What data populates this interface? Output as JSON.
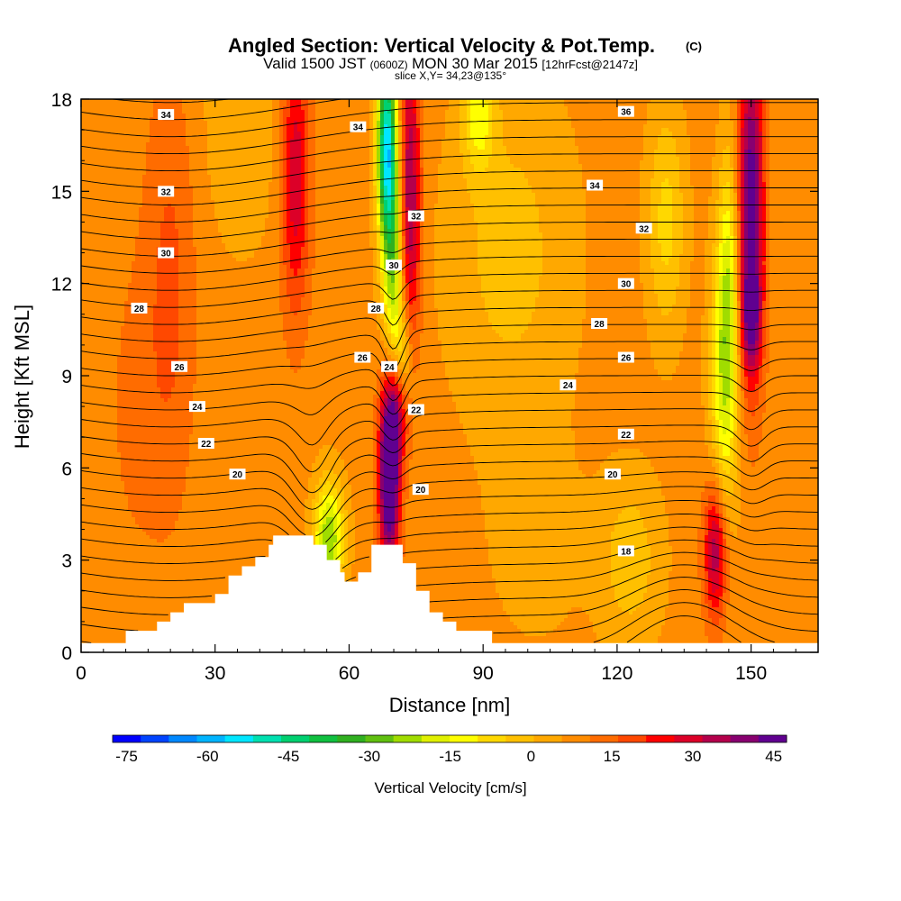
{
  "title": {
    "main": "Angled Section: Vertical Velocity & Pot.Temp.",
    "main_suffix": "(C)",
    "valid_prefix": "Valid 1500 JST",
    "valid_z": "(0600Z)",
    "valid_date": "MON 30 Mar 2015",
    "forecast": "[12hrFcst@2147z]",
    "slice": "slice X,Y= 34,23@135°"
  },
  "chart_data": {
    "type": "heatmap",
    "xlabel": "Distance [nm]",
    "ylabel": "Height [Kft MSL]",
    "xlim": [
      0,
      165
    ],
    "ylim": [
      0,
      18
    ],
    "x_ticks": [
      0,
      30,
      60,
      90,
      120,
      150
    ],
    "y_ticks": [
      0,
      3,
      6,
      9,
      12,
      15,
      18
    ],
    "colorbar": {
      "label": "Vertical Velocity [cm/s]",
      "range": [
        -75,
        50
      ],
      "step": 5,
      "tick_values": [
        -75,
        -60,
        -45,
        -30,
        -15,
        0,
        15,
        30,
        45
      ],
      "colors": [
        "#0000ff",
        "#0044ff",
        "#0088ff",
        "#00b4ff",
        "#00e6ff",
        "#00e0b0",
        "#00d070",
        "#10c040",
        "#30b020",
        "#60c010",
        "#a0dc00",
        "#e0f000",
        "#ffff00",
        "#ffd800",
        "#ffc000",
        "#ffa800",
        "#ff8c00",
        "#ff6c00",
        "#ff4800",
        "#ff0000",
        "#dc0028",
        "#b4004c",
        "#880070",
        "#600090"
      ]
    },
    "terrain_profile": [
      [
        0,
        0.3
      ],
      [
        10,
        0.3
      ],
      [
        10,
        0.7
      ],
      [
        17,
        0.7
      ],
      [
        17,
        1.0
      ],
      [
        20,
        1.0
      ],
      [
        20,
        1.3
      ],
      [
        23,
        1.3
      ],
      [
        23,
        1.6
      ],
      [
        30,
        1.6
      ],
      [
        30,
        1.9
      ],
      [
        33,
        1.9
      ],
      [
        33,
        2.5
      ],
      [
        36,
        2.5
      ],
      [
        36,
        2.8
      ],
      [
        39,
        2.8
      ],
      [
        39,
        3.1
      ],
      [
        42,
        3.1
      ],
      [
        42,
        3.5
      ],
      [
        43,
        3.5
      ],
      [
        43,
        3.8
      ],
      [
        52,
        3.8
      ],
      [
        52,
        3.5
      ],
      [
        55,
        3.5
      ],
      [
        55,
        3.0
      ],
      [
        58,
        3.0
      ],
      [
        58,
        2.6
      ],
      [
        59,
        2.6
      ],
      [
        59,
        2.3
      ],
      [
        62,
        2.3
      ],
      [
        62,
        2.6
      ],
      [
        65,
        2.6
      ],
      [
        65,
        3.5
      ],
      [
        72,
        3.5
      ],
      [
        72,
        2.9
      ],
      [
        75,
        2.9
      ],
      [
        75,
        2.0
      ],
      [
        78,
        2.0
      ],
      [
        78,
        1.3
      ],
      [
        81,
        1.3
      ],
      [
        81,
        1.0
      ],
      [
        84,
        1.0
      ],
      [
        84,
        0.7
      ],
      [
        92,
        0.7
      ],
      [
        92,
        0.3
      ],
      [
        165,
        0.3
      ]
    ],
    "background_w": 7,
    "velocity_features": [
      {
        "x": 69,
        "y": 5.9,
        "sx": 1.6,
        "sy": 2.1,
        "w": 52
      },
      {
        "x": 71,
        "y": 8.2,
        "sx": 1.5,
        "sy": 1.3,
        "w": 22
      },
      {
        "x": 73.5,
        "y": 14.8,
        "sx": 1.8,
        "sy": 3.6,
        "w": 30
      },
      {
        "x": 68.5,
        "y": 16.5,
        "sx": 1.6,
        "sy": 2.2,
        "w": -58
      },
      {
        "x": 70,
        "y": 12.5,
        "sx": 1.7,
        "sy": 2.5,
        "w": -30
      },
      {
        "x": 72,
        "y": 9.5,
        "sx": 1.5,
        "sy": 1.2,
        "w": -20
      },
      {
        "x": 55.5,
        "y": 3.7,
        "sx": 2.4,
        "sy": 1.3,
        "w": -32
      },
      {
        "x": 48,
        "y": 15.5,
        "sx": 2.3,
        "sy": 3.2,
        "w": 22
      },
      {
        "x": 150,
        "y": 14.5,
        "sx": 2.0,
        "sy": 3.8,
        "w": 38
      },
      {
        "x": 150,
        "y": 10.8,
        "sx": 1.6,
        "sy": 1.2,
        "w": 20
      },
      {
        "x": 142,
        "y": 3.3,
        "sx": 1.8,
        "sy": 1.6,
        "w": 28
      },
      {
        "x": 144,
        "y": 9.0,
        "sx": 2.2,
        "sy": 3.2,
        "w": -24
      },
      {
        "x": 145,
        "y": 12.5,
        "sx": 1.6,
        "sy": 3.0,
        "w": -16
      },
      {
        "x": 131,
        "y": 14.0,
        "sx": 3.0,
        "sy": 2.6,
        "w": -14
      },
      {
        "x": 89,
        "y": 17.5,
        "sx": 2.5,
        "sy": 1.3,
        "w": -18
      },
      {
        "x": 123,
        "y": 3.0,
        "sx": 5.0,
        "sy": 2.0,
        "w": -10
      },
      {
        "x": 102,
        "y": 3.5,
        "sx": 8.0,
        "sy": 2.5,
        "w": -4
      },
      {
        "x": 36,
        "y": 17.5,
        "sx": 6.0,
        "sy": 3.0,
        "w": -7
      },
      {
        "x": 20,
        "y": 12.0,
        "sx": 4.0,
        "sy": 5.0,
        "w": 9
      },
      {
        "x": 96,
        "y": 13.0,
        "sx": 10.0,
        "sy": 4.0,
        "w": -9
      },
      {
        "x": 12,
        "y": 8.0,
        "sx": 5.0,
        "sy": 4.0,
        "w": 4
      }
    ],
    "theta_contours": {
      "levels": [
        17,
        17.5,
        18,
        18.5,
        19,
        19.5,
        20,
        20.5,
        21,
        21.5,
        22,
        22.5,
        23,
        23.5,
        24,
        24.5,
        25,
        25.5,
        26,
        26.5,
        27,
        27.5,
        28,
        28.5,
        29,
        29.5,
        30,
        30.5,
        31,
        31.5,
        32,
        32.5,
        33,
        33.5,
        34,
        34.5,
        35,
        35.5,
        36
      ],
      "labels": [
        {
          "text": "34",
          "x": 19,
          "y": 17.5
        },
        {
          "text": "34",
          "x": 62,
          "y": 17.1
        },
        {
          "text": "36",
          "x": 122,
          "y": 17.6
        },
        {
          "text": "32",
          "x": 19,
          "y": 15.0
        },
        {
          "text": "34",
          "x": 115,
          "y": 15.2
        },
        {
          "text": "32",
          "x": 75,
          "y": 14.2
        },
        {
          "text": "32",
          "x": 126,
          "y": 13.8
        },
        {
          "text": "30",
          "x": 19,
          "y": 13.0
        },
        {
          "text": "30",
          "x": 70,
          "y": 12.6
        },
        {
          "text": "30",
          "x": 122,
          "y": 12.0
        },
        {
          "text": "28",
          "x": 13,
          "y": 11.2
        },
        {
          "text": "28",
          "x": 66,
          "y": 11.2
        },
        {
          "text": "28",
          "x": 116,
          "y": 10.7
        },
        {
          "text": "26",
          "x": 22,
          "y": 9.3
        },
        {
          "text": "26",
          "x": 63,
          "y": 9.6
        },
        {
          "text": "24",
          "x": 69,
          "y": 9.3
        },
        {
          "text": "26",
          "x": 122,
          "y": 9.6
        },
        {
          "text": "24",
          "x": 26,
          "y": 8.0
        },
        {
          "text": "24",
          "x": 109,
          "y": 8.7
        },
        {
          "text": "22",
          "x": 75,
          "y": 7.9
        },
        {
          "text": "22",
          "x": 28,
          "y": 6.8
        },
        {
          "text": "22",
          "x": 122,
          "y": 7.1
        },
        {
          "text": "20",
          "x": 35,
          "y": 5.8
        },
        {
          "text": "20",
          "x": 76,
          "y": 5.3
        },
        {
          "text": "20",
          "x": 119,
          "y": 5.8
        },
        {
          "text": "18",
          "x": 122,
          "y": 3.3
        }
      ]
    }
  }
}
